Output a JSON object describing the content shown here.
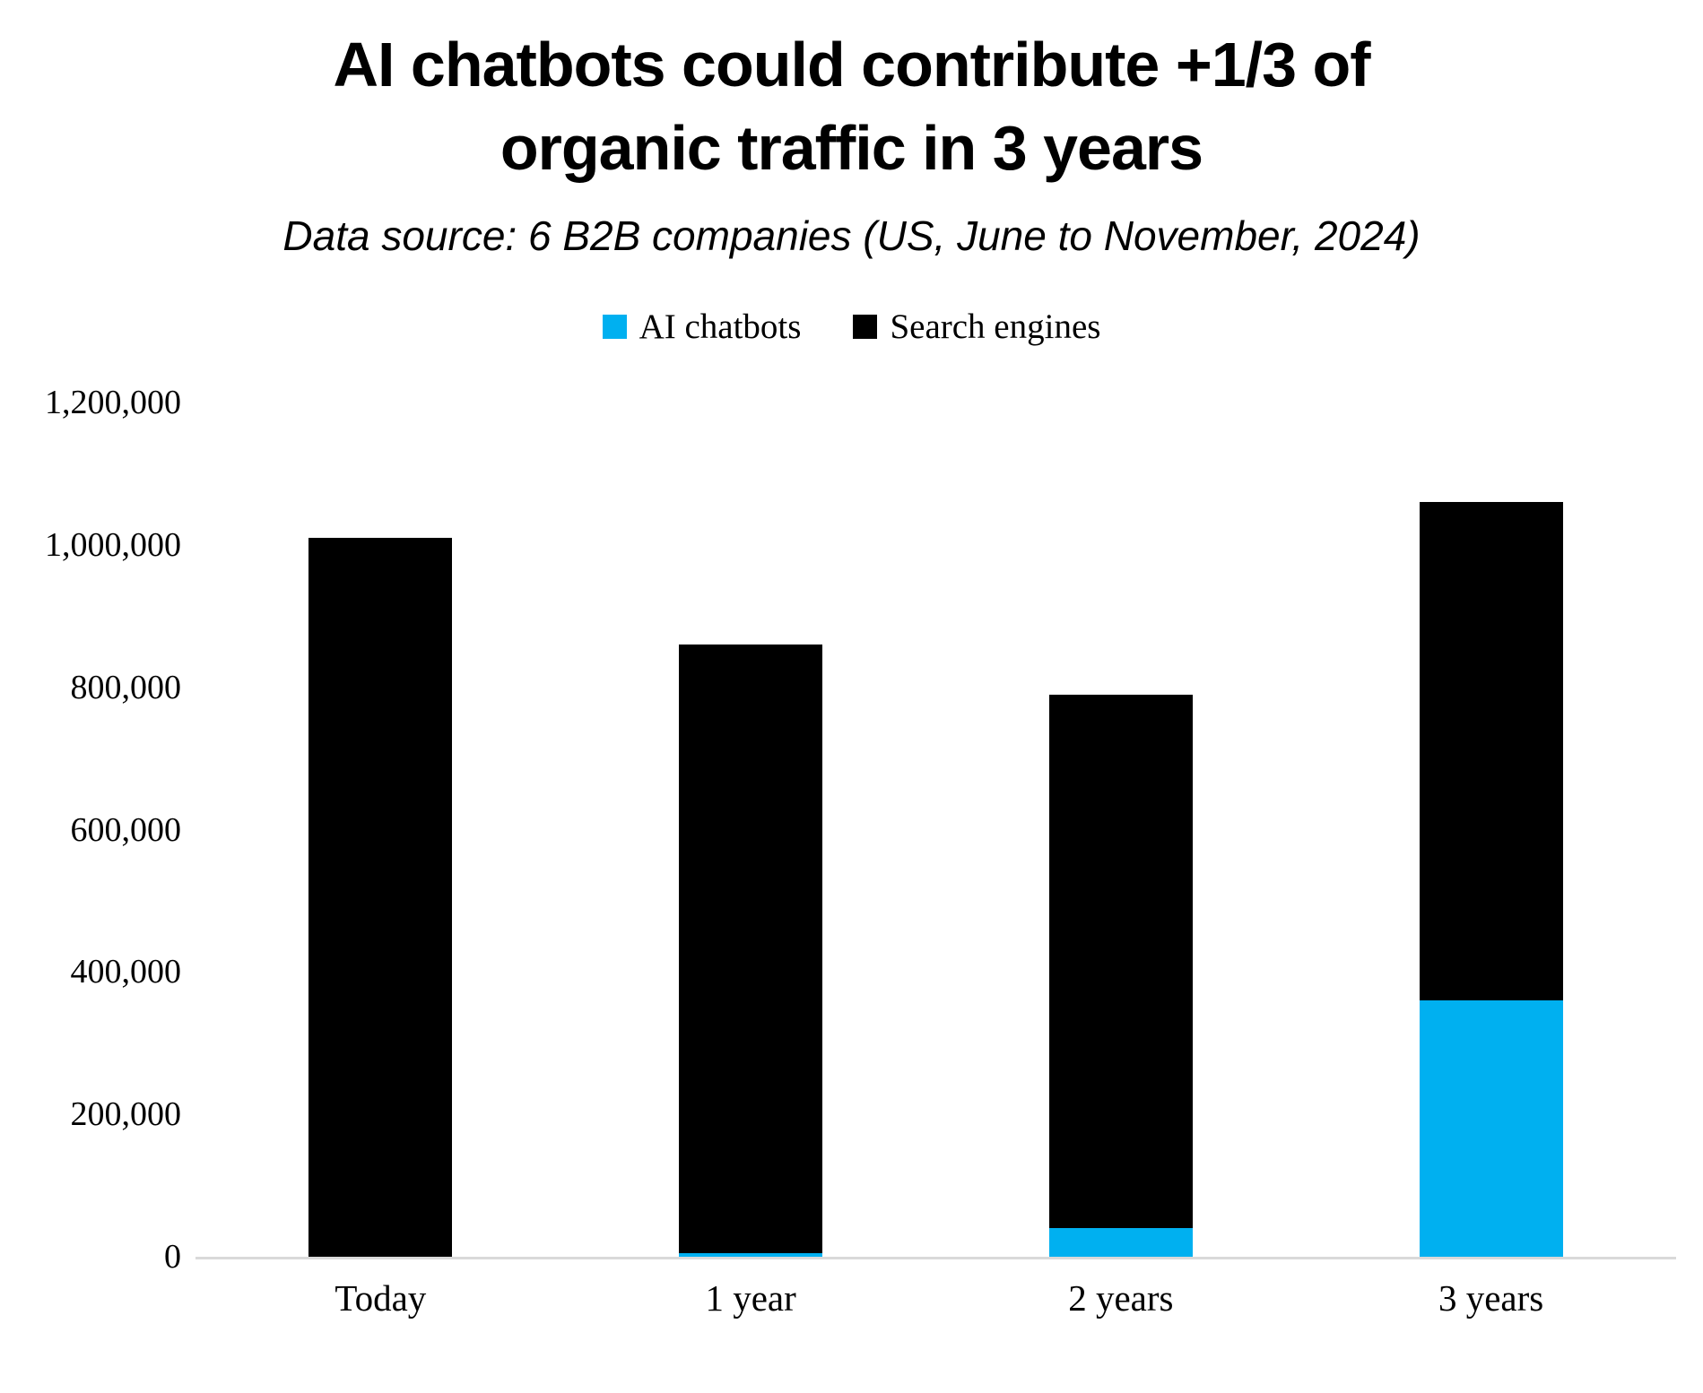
{
  "header": {
    "title_line1": "AI chatbots could contribute +1/3 of",
    "title_line2": "organic traffic in 3 years",
    "subtitle": "Data source: 6 B2B companies (US, June to November, 2024)"
  },
  "legend": [
    {
      "label": "AI chatbots",
      "color": "#00B0F0"
    },
    {
      "label": "Search engines",
      "color": "#000000"
    }
  ],
  "colors": {
    "ai_chatbots": "#00B0F0",
    "search_engines": "#000000",
    "axis_line": "#D9D9D9",
    "text": "#000000"
  },
  "chart_data": {
    "type": "bar",
    "stacked": true,
    "title": "AI chatbots could contribute +1/3 of organic traffic in 3 years",
    "subtitle": "Data source: 6 B2B companies (US, June to November, 2024)",
    "categories": [
      "Today",
      "1 year",
      "2 years",
      "3 years"
    ],
    "series": [
      {
        "name": "AI chatbots",
        "color": "#00B0F0",
        "values": [
          0,
          5000,
          40000,
          360000
        ]
      },
      {
        "name": "Search engines",
        "color": "#000000",
        "values": [
          1010000,
          855000,
          750000,
          700000
        ]
      }
    ],
    "xlabel": "",
    "ylabel": "",
    "ylim": [
      0,
      1200000
    ],
    "ytick_step": 200000,
    "ytick_labels": [
      "1,200,000",
      "1,000,000",
      "800,000",
      "600,000",
      "400,000",
      "200,000",
      "0"
    ],
    "grid": false,
    "legend_position": "top"
  }
}
